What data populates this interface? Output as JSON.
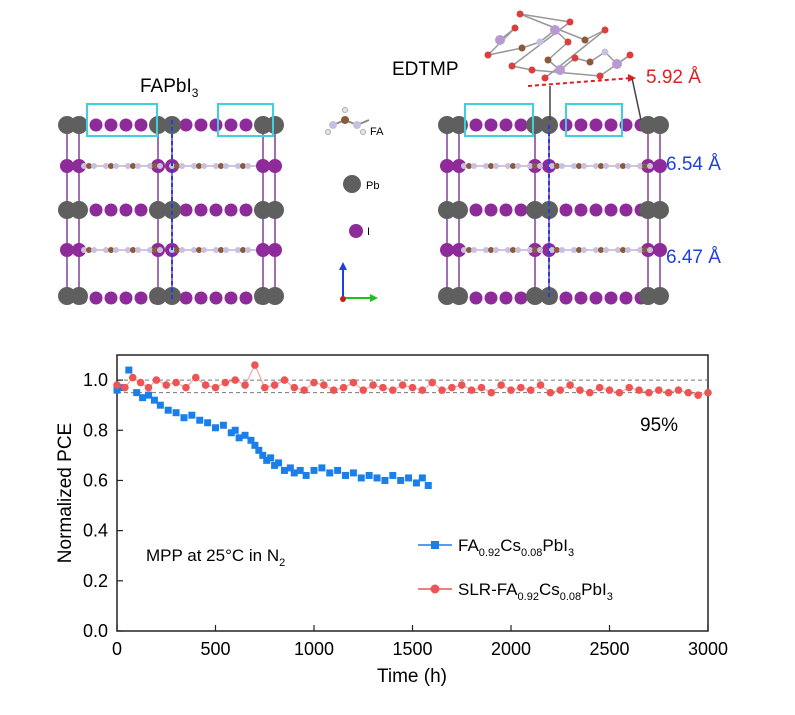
{
  "top": {
    "left_title": "FAPbI",
    "left_title_sub": "3",
    "right_title": "EDTMP",
    "legend": {
      "fa": "FA",
      "pb": "Pb",
      "i": "I"
    },
    "distances": {
      "red": "5.92 Å",
      "blue_upper": "6.54 Å",
      "blue_lower": "6.47 Å"
    },
    "colors": {
      "pb": "#5f5f5f",
      "i": "#8e2a9a",
      "box": "#3fd0e0",
      "dashed": "#1f3fe0",
      "red": "#e02020",
      "blue_text": "#1f3fe0",
      "c": "#8a5a3a",
      "n": "#c9c0e0",
      "o": "#d84040",
      "p": "#b69ad0"
    }
  },
  "chart_data": {
    "type": "scatter",
    "xlabel": "Time (h)",
    "ylabel": "Normalized PCE",
    "xlim": [
      0,
      3000
    ],
    "ylim": [
      0.0,
      1.1
    ],
    "x_ticks": [
      "0",
      "500",
      "1000",
      "1500",
      "2000",
      "2500",
      "3000"
    ],
    "y_ticks": [
      "0.0",
      "0.2",
      "0.4",
      "0.6",
      "0.8",
      "1.0"
    ],
    "reference_lines": [
      1.0,
      0.95
    ],
    "annotation": "95%",
    "condition_main": "MPP at 25°C in N",
    "condition_sub": "2",
    "legend_position": "bottom-right",
    "series": [
      {
        "name_parts": [
          "FA",
          "0.92",
          "Cs",
          "0.08",
          "PbI",
          "3"
        ],
        "color": "#1a7fe8",
        "marker": "square",
        "x": [
          0,
          30,
          60,
          100,
          130,
          160,
          190,
          220,
          260,
          300,
          340,
          380,
          420,
          460,
          500,
          540,
          580,
          600,
          620,
          650,
          680,
          700,
          720,
          740,
          760,
          780,
          800,
          820,
          850,
          880,
          900,
          930,
          960,
          1000,
          1040,
          1080,
          1120,
          1160,
          1200,
          1240,
          1280,
          1320,
          1360,
          1400,
          1440,
          1480,
          1520,
          1550,
          1580
        ],
        "y": [
          0.96,
          0.97,
          1.04,
          0.95,
          0.93,
          0.94,
          0.92,
          0.9,
          0.88,
          0.87,
          0.85,
          0.86,
          0.84,
          0.83,
          0.81,
          0.82,
          0.79,
          0.8,
          0.77,
          0.78,
          0.76,
          0.74,
          0.72,
          0.7,
          0.68,
          0.69,
          0.66,
          0.67,
          0.64,
          0.65,
          0.63,
          0.64,
          0.62,
          0.64,
          0.65,
          0.63,
          0.64,
          0.62,
          0.63,
          0.61,
          0.62,
          0.61,
          0.6,
          0.62,
          0.6,
          0.61,
          0.59,
          0.61,
          0.58
        ]
      },
      {
        "name_parts": [
          "SLR-FA",
          "0.92",
          "Cs",
          "0.08",
          "PbI",
          "3"
        ],
        "color": "#ef5454",
        "marker": "circle",
        "x": [
          0,
          40,
          80,
          120,
          160,
          200,
          250,
          300,
          350,
          400,
          450,
          500,
          550,
          600,
          650,
          700,
          750,
          800,
          850,
          900,
          950,
          1000,
          1050,
          1100,
          1150,
          1200,
          1250,
          1300,
          1350,
          1400,
          1450,
          1500,
          1550,
          1600,
          1650,
          1700,
          1750,
          1800,
          1850,
          1900,
          1950,
          2000,
          2050,
          2100,
          2150,
          2200,
          2250,
          2300,
          2350,
          2400,
          2450,
          2500,
          2550,
          2600,
          2650,
          2700,
          2750,
          2800,
          2850,
          2900,
          2950,
          3000
        ],
        "y": [
          0.98,
          0.97,
          1.01,
          0.99,
          0.97,
          1.0,
          0.98,
          0.99,
          0.97,
          1.01,
          0.98,
          0.97,
          0.99,
          1.0,
          0.98,
          1.06,
          0.97,
          0.98,
          1.0,
          0.97,
          0.96,
          0.99,
          0.98,
          0.96,
          0.97,
          0.99,
          0.96,
          0.98,
          0.97,
          0.96,
          0.98,
          0.97,
          0.96,
          0.99,
          0.96,
          0.97,
          0.98,
          0.96,
          0.97,
          0.95,
          0.98,
          0.96,
          0.97,
          0.96,
          0.98,
          0.95,
          0.96,
          0.98,
          0.96,
          0.95,
          0.97,
          0.96,
          0.95,
          0.97,
          0.96,
          0.95,
          0.96,
          0.95,
          0.96,
          0.95,
          0.94,
          0.95
        ]
      }
    ]
  }
}
